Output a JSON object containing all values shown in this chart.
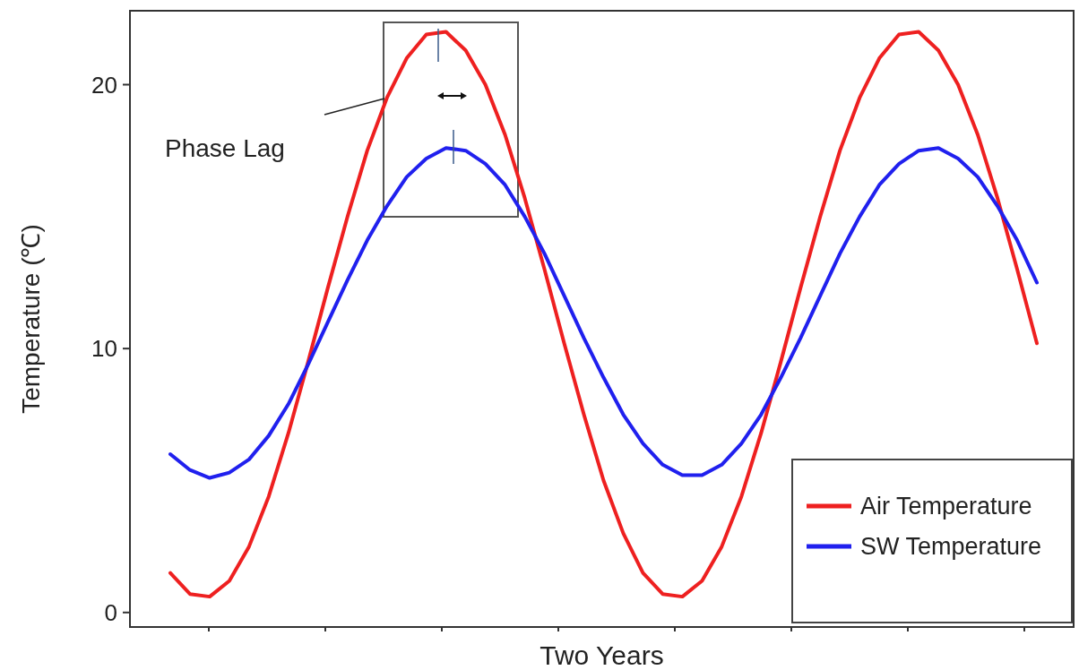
{
  "chart_data": {
    "type": "line",
    "xlabel": "Two Years",
    "ylabel": "Temperature (℃)",
    "annotations": [
      "Phase Lag"
    ],
    "categories": [
      null,
      null,
      null,
      null,
      null,
      null,
      null,
      null,
      null,
      null,
      null,
      null,
      null,
      null,
      null,
      null,
      null,
      null,
      null,
      null,
      null,
      null,
      null,
      null,
      null,
      null,
      null,
      null,
      null,
      null,
      null,
      null,
      null,
      null,
      null,
      null,
      null,
      null,
      null,
      null,
      null,
      null,
      null,
      null,
      null
    ],
    "ylim": [
      -0.55,
      22.8
    ],
    "yticks": [
      0,
      10,
      20
    ],
    "grid": false,
    "legend": "bottom right",
    "marker": "none",
    "line_style": "solid",
    "series": [
      {
        "name": "Air Temperature",
        "color": "#ee2020",
        "values": [
          1.5,
          0.7,
          0.6,
          1.2,
          2.5,
          4.4,
          6.8,
          9.5,
          12.3,
          15.0,
          17.5,
          19.5,
          21.0,
          21.9,
          22.0,
          21.3,
          20.0,
          18.1,
          15.7,
          13.0,
          10.2,
          7.5,
          5.0,
          3.0,
          1.5,
          0.7,
          0.6,
          1.2,
          2.5,
          4.4,
          6.8,
          9.5,
          12.3,
          15.0,
          17.5,
          19.5,
          21.0,
          21.9,
          22.0,
          21.3,
          20.0,
          18.1,
          15.7,
          13.0,
          10.2
        ]
      },
      {
        "name": "SW Temperature",
        "color": "#2020ee",
        "values": [
          6.0,
          5.4,
          5.1,
          5.3,
          5.8,
          6.7,
          7.9,
          9.4,
          11.0,
          12.6,
          14.1,
          15.4,
          16.5,
          17.2,
          17.6,
          17.5,
          17.0,
          16.2,
          15.0,
          13.6,
          12.0,
          10.4,
          8.9,
          7.5,
          6.4,
          5.6,
          5.2,
          5.2,
          5.6,
          6.4,
          7.5,
          8.9,
          10.4,
          12.0,
          13.6,
          15.0,
          16.2,
          17.0,
          17.5,
          17.6,
          17.2,
          16.5,
          15.4,
          14.1,
          12.5
        ]
      }
    ]
  }
}
